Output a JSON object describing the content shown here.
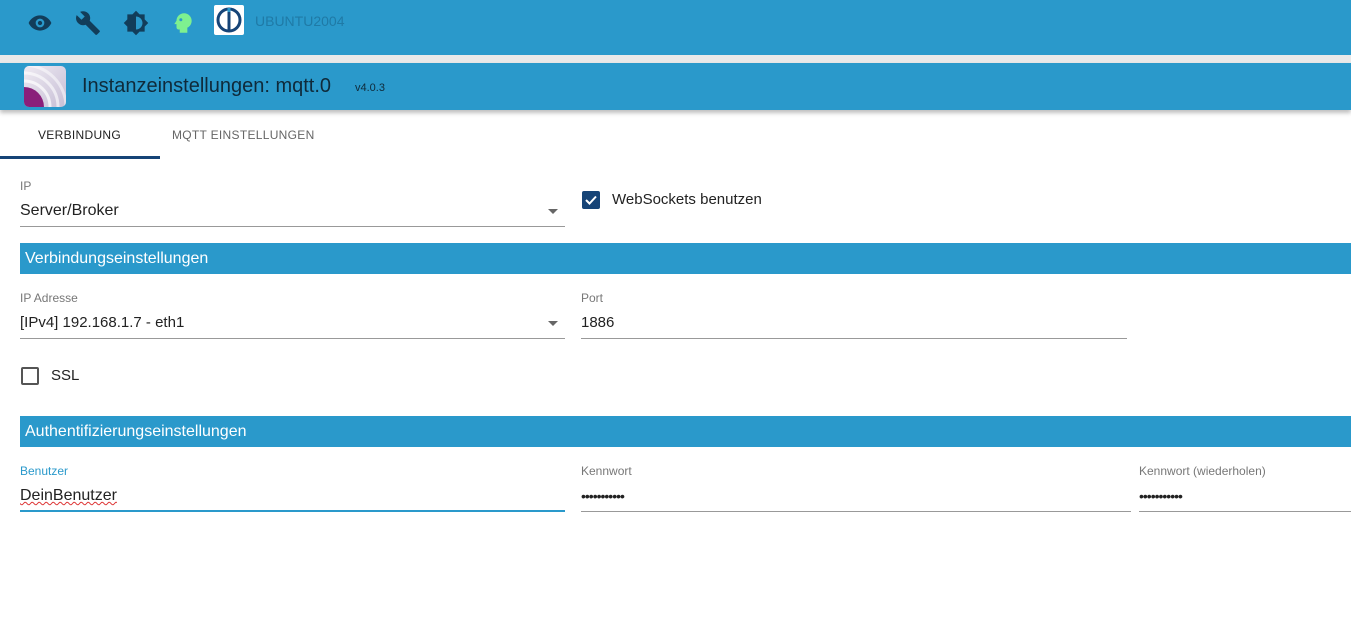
{
  "topbar": {
    "icons": [
      "eye-icon",
      "wrench-icon",
      "brightness-icon",
      "head-icon"
    ],
    "host": "UBUNTU2004"
  },
  "header": {
    "title": "Instanzeinstellungen: mqtt.0",
    "version": "v4.0.3"
  },
  "tabs": [
    {
      "label": "VERBINDUNG",
      "active": true
    },
    {
      "label": "MQTT EINSTELLUNGEN",
      "active": false
    }
  ],
  "form": {
    "ip": {
      "label": "IP",
      "value": "Server/Broker"
    },
    "websockets": {
      "label": "WebSockets benutzen",
      "checked": true
    },
    "section_connection": "Verbindungseinstellungen",
    "ip_address": {
      "label": "IP Adresse",
      "value": "[IPv4] 192.168.1.7 - eth1"
    },
    "port": {
      "label": "Port",
      "value": "1886"
    },
    "ssl": {
      "label": "SSL",
      "checked": false
    },
    "section_auth": "Authentifizierungseinstellungen",
    "user": {
      "label": "Benutzer",
      "value": "DeinBenutzer"
    },
    "password": {
      "label": "Kennwort",
      "value": "•••••••••••"
    },
    "password_repeat": {
      "label": "Kennwort (wiederholen)",
      "value": "•••••••••••"
    }
  },
  "colors": {
    "primary": "#2a99cb",
    "accent": "#164477",
    "head": "#7ef090"
  }
}
